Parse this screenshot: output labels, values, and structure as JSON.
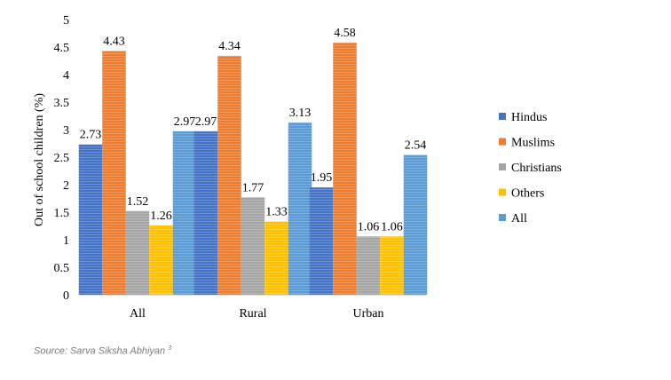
{
  "chart_data": {
    "type": "bar",
    "title": "",
    "xlabel": "",
    "ylabel": "Out of school children (%)",
    "ylim": [
      0,
      5
    ],
    "yticks": [
      "0",
      "0.5",
      "1",
      "1.5",
      "2",
      "2.5",
      "3",
      "3.5",
      "4",
      "4.5",
      "5"
    ],
    "grid": false,
    "legend_position": "right",
    "categories": [
      "All",
      "Rural",
      "Urban"
    ],
    "series": [
      {
        "name": "Hindus",
        "color": "#4472c4",
        "values": [
          2.73,
          2.97,
          1.95
        ],
        "labels": [
          "2.73",
          "2.97",
          "1.95"
        ]
      },
      {
        "name": "Muslims",
        "color": "#ed7d31",
        "values": [
          4.43,
          4.34,
          4.58
        ],
        "labels": [
          "4.43",
          "4.34",
          "4.58"
        ]
      },
      {
        "name": "Christians",
        "color": "#a5a5a5",
        "values": [
          1.52,
          1.77,
          1.06
        ],
        "labels": [
          "1.52",
          "1.77",
          "1.06"
        ]
      },
      {
        "name": "Others",
        "color": "#ffc000",
        "values": [
          1.26,
          1.33,
          1.06
        ],
        "labels": [
          "1.26",
          "1.33",
          "1.06"
        ]
      },
      {
        "name": "All",
        "color": "#5b9bd5",
        "values": [
          2.97,
          3.13,
          2.54
        ],
        "labels": [
          "2.97",
          "3.13",
          "2.54"
        ]
      }
    ]
  },
  "source": {
    "text": "Source: Sarva Siksha Abhiyan",
    "superscript": "3"
  }
}
